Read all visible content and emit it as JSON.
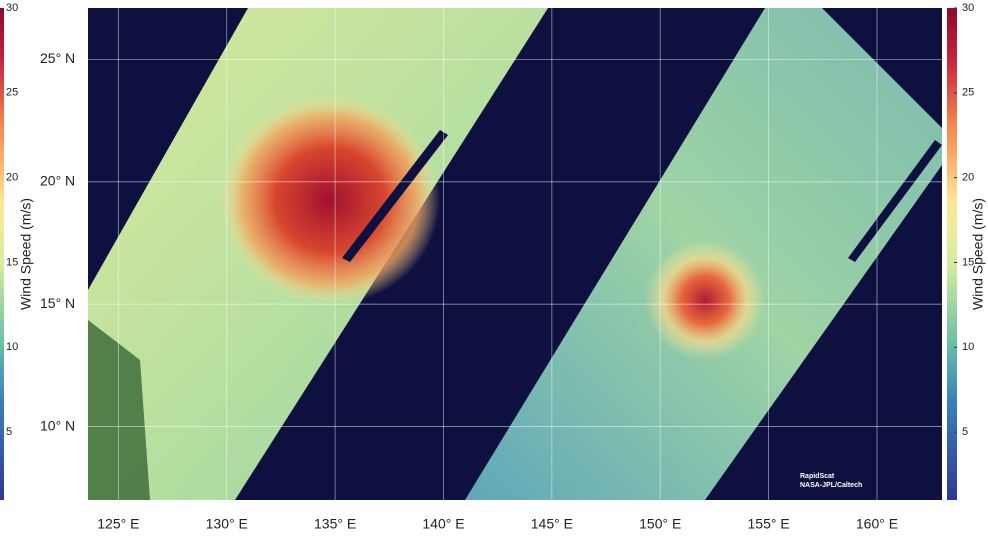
{
  "map": {
    "lonlim": [
      123.6,
      163
    ],
    "latlim": [
      7,
      27.1
    ],
    "lon_ticks": [
      {
        "value": 125,
        "label": "125° E"
      },
      {
        "value": 130,
        "label": "130° E"
      },
      {
        "value": 135,
        "label": "135° E"
      },
      {
        "value": 140,
        "label": "140° E"
      },
      {
        "value": 145,
        "label": "145° E"
      },
      {
        "value": 150,
        "label": "150° E"
      },
      {
        "value": 155,
        "label": "155° E"
      },
      {
        "value": 160,
        "label": "160° E"
      }
    ],
    "lat_ticks": [
      {
        "value": 10,
        "label": "10° N"
      },
      {
        "value": 15,
        "label": "15° N"
      },
      {
        "value": 20,
        "label": "20° N"
      },
      {
        "value": 25,
        "label": "25° N"
      }
    ],
    "grid": true
  },
  "colorbar": {
    "label": "Wind Speed (m/s)",
    "clim": [
      1,
      30
    ],
    "ticks": [
      5,
      10,
      15,
      20,
      25,
      30
    ]
  },
  "credit": [
    "RapidScat",
    "NASA-JPL/Caltech"
  ]
}
